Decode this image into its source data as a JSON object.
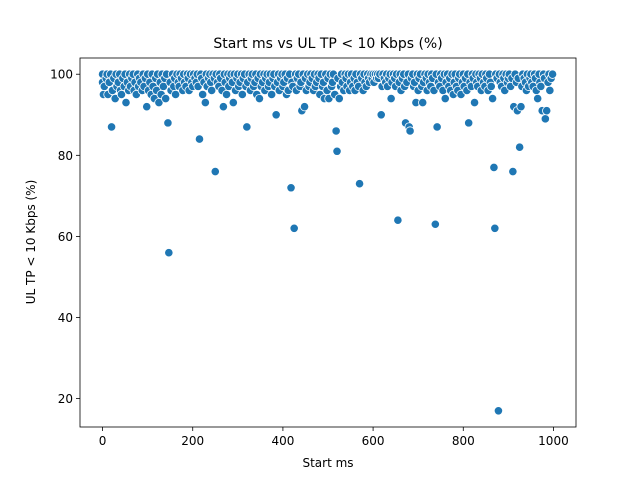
{
  "chart_data": {
    "type": "scatter",
    "title": "Start ms vs UL TP < 10 Kbps (%)",
    "xlabel": "Start ms",
    "ylabel": "UL TP < 10 Kbps (%)",
    "xlim": [
      -50,
      1050
    ],
    "ylim": [
      13,
      104
    ],
    "xticks": [
      0,
      200,
      400,
      600,
      800,
      1000
    ],
    "yticks": [
      20,
      40,
      60,
      80,
      100
    ],
    "grid": false,
    "color": "#1f77b4",
    "points": [
      [
        0,
        100
      ],
      [
        0,
        98
      ],
      [
        2,
        95
      ],
      [
        4,
        97
      ],
      [
        8,
        99
      ],
      [
        10,
        100
      ],
      [
        12,
        95
      ],
      [
        15,
        98
      ],
      [
        18,
        100
      ],
      [
        20,
        87
      ],
      [
        22,
        96
      ],
      [
        25,
        99
      ],
      [
        28,
        94
      ],
      [
        30,
        100
      ],
      [
        32,
        97
      ],
      [
        35,
        98
      ],
      [
        38,
        100
      ],
      [
        40,
        96
      ],
      [
        42,
        95
      ],
      [
        45,
        99
      ],
      [
        48,
        97
      ],
      [
        50,
        100
      ],
      [
        52,
        93
      ],
      [
        55,
        98
      ],
      [
        58,
        96
      ],
      [
        60,
        100
      ],
      [
        62,
        97
      ],
      [
        65,
        99
      ],
      [
        68,
        100
      ],
      [
        70,
        96
      ],
      [
        72,
        98
      ],
      [
        75,
        95
      ],
      [
        78,
        100
      ],
      [
        80,
        97
      ],
      [
        82,
        99
      ],
      [
        85,
        98
      ],
      [
        88,
        96
      ],
      [
        90,
        100
      ],
      [
        92,
        97
      ],
      [
        95,
        99
      ],
      [
        98,
        92
      ],
      [
        100,
        100
      ],
      [
        102,
        96
      ],
      [
        105,
        98
      ],
      [
        108,
        95
      ],
      [
        110,
        100
      ],
      [
        112,
        97
      ],
      [
        115,
        94
      ],
      [
        118,
        99
      ],
      [
        120,
        96
      ],
      [
        122,
        100
      ],
      [
        125,
        93
      ],
      [
        128,
        98
      ],
      [
        130,
        95
      ],
      [
        132,
        100
      ],
      [
        135,
        97
      ],
      [
        138,
        99
      ],
      [
        140,
        94
      ],
      [
        142,
        100
      ],
      [
        145,
        88
      ],
      [
        147,
        56
      ],
      [
        150,
        98
      ],
      [
        152,
        96
      ],
      [
        155,
        100
      ],
      [
        158,
        97
      ],
      [
        160,
        99
      ],
      [
        162,
        95
      ],
      [
        165,
        100
      ],
      [
        168,
        98
      ],
      [
        170,
        97
      ],
      [
        172,
        100
      ],
      [
        175,
        99
      ],
      [
        178,
        96
      ],
      [
        180,
        100
      ],
      [
        182,
        98
      ],
      [
        185,
        97
      ],
      [
        188,
        100
      ],
      [
        190,
        99
      ],
      [
        192,
        96
      ],
      [
        195,
        100
      ],
      [
        198,
        98
      ],
      [
        200,
        97
      ],
      [
        202,
        100
      ],
      [
        205,
        99
      ],
      [
        208,
        98
      ],
      [
        210,
        100
      ],
      [
        212,
        97
      ],
      [
        215,
        84
      ],
      [
        218,
        100
      ],
      [
        220,
        99
      ],
      [
        222,
        95
      ],
      [
        225,
        98
      ],
      [
        228,
        93
      ],
      [
        230,
        100
      ],
      [
        232,
        97
      ],
      [
        235,
        99
      ],
      [
        238,
        100
      ],
      [
        240,
        98
      ],
      [
        242,
        96
      ],
      [
        245,
        100
      ],
      [
        248,
        99
      ],
      [
        250,
        76
      ],
      [
        252,
        100
      ],
      [
        255,
        98
      ],
      [
        258,
        97
      ],
      [
        260,
        100
      ],
      [
        262,
        99
      ],
      [
        265,
        96
      ],
      [
        268,
        92
      ],
      [
        270,
        100
      ],
      [
        272,
        98
      ],
      [
        275,
        95
      ],
      [
        278,
        100
      ],
      [
        280,
        97
      ],
      [
        282,
        99
      ],
      [
        285,
        100
      ],
      [
        288,
        98
      ],
      [
        290,
        93
      ],
      [
        292,
        100
      ],
      [
        295,
        96
      ],
      [
        298,
        99
      ],
      [
        300,
        100
      ],
      [
        302,
        97
      ],
      [
        305,
        98
      ],
      [
        308,
        100
      ],
      [
        310,
        95
      ],
      [
        312,
        99
      ],
      [
        315,
        100
      ],
      [
        318,
        97
      ],
      [
        320,
        87
      ],
      [
        322,
        98
      ],
      [
        325,
        100
      ],
      [
        328,
        96
      ],
      [
        330,
        99
      ],
      [
        332,
        100
      ],
      [
        335,
        97
      ],
      [
        338,
        98
      ],
      [
        340,
        100
      ],
      [
        342,
        95
      ],
      [
        345,
        99
      ],
      [
        348,
        94
      ],
      [
        350,
        100
      ],
      [
        352,
        97
      ],
      [
        355,
        98
      ],
      [
        358,
        100
      ],
      [
        360,
        96
      ],
      [
        362,
        99
      ],
      [
        365,
        100
      ],
      [
        368,
        97
      ],
      [
        370,
        98
      ],
      [
        372,
        100
      ],
      [
        375,
        95
      ],
      [
        378,
        99
      ],
      [
        380,
        100
      ],
      [
        382,
        97
      ],
      [
        385,
        90
      ],
      [
        388,
        98
      ],
      [
        390,
        100
      ],
      [
        392,
        96
      ],
      [
        395,
        99
      ],
      [
        398,
        100
      ],
      [
        400,
        97
      ],
      [
        402,
        98
      ],
      [
        405,
        100
      ],
      [
        408,
        95
      ],
      [
        410,
        99
      ],
      [
        412,
        96
      ],
      [
        415,
        100
      ],
      [
        418,
        72
      ],
      [
        420,
        98
      ],
      [
        422,
        97
      ],
      [
        425,
        62
      ],
      [
        428,
        100
      ],
      [
        430,
        96
      ],
      [
        432,
        99
      ],
      [
        435,
        100
      ],
      [
        438,
        97
      ],
      [
        440,
        98
      ],
      [
        442,
        91
      ],
      [
        445,
        100
      ],
      [
        448,
        92
      ],
      [
        450,
        99
      ],
      [
        452,
        96
      ],
      [
        455,
        100
      ],
      [
        458,
        97
      ],
      [
        460,
        98
      ],
      [
        462,
        100
      ],
      [
        465,
        99
      ],
      [
        468,
        96
      ],
      [
        470,
        100
      ],
      [
        472,
        97
      ],
      [
        475,
        98
      ],
      [
        478,
        100
      ],
      [
        480,
        99
      ],
      [
        482,
        95
      ],
      [
        485,
        100
      ],
      [
        488,
        97
      ],
      [
        490,
        98
      ],
      [
        492,
        94
      ],
      [
        495,
        100
      ],
      [
        498,
        96
      ],
      [
        500,
        99
      ],
      [
        502,
        94
      ],
      [
        505,
        100
      ],
      [
        508,
        97
      ],
      [
        510,
        98
      ],
      [
        512,
        100
      ],
      [
        515,
        95
      ],
      [
        518,
        86
      ],
      [
        520,
        81
      ],
      [
        522,
        99
      ],
      [
        525,
        94
      ],
      [
        528,
        97
      ],
      [
        530,
        100
      ],
      [
        532,
        98
      ],
      [
        535,
        96
      ],
      [
        538,
        100
      ],
      [
        540,
        99
      ],
      [
        542,
        97
      ],
      [
        545,
        100
      ],
      [
        548,
        96
      ],
      [
        550,
        98
      ],
      [
        552,
        100
      ],
      [
        555,
        97
      ],
      [
        558,
        99
      ],
      [
        560,
        96
      ],
      [
        562,
        100
      ],
      [
        565,
        98
      ],
      [
        568,
        97
      ],
      [
        570,
        73
      ],
      [
        572,
        100
      ],
      [
        575,
        99
      ],
      [
        578,
        96
      ],
      [
        580,
        100
      ],
      [
        582,
        98
      ],
      [
        585,
        97
      ],
      [
        588,
        100
      ],
      [
        590,
        99
      ],
      [
        592,
        98
      ],
      [
        595,
        100
      ],
      [
        598,
        99
      ],
      [
        600,
        100
      ],
      [
        602,
        98
      ],
      [
        605,
        100
      ],
      [
        608,
        99
      ],
      [
        610,
        100
      ],
      [
        612,
        99
      ],
      [
        615,
        100
      ],
      [
        618,
        90
      ],
      [
        620,
        97
      ],
      [
        622,
        100
      ],
      [
        625,
        99
      ],
      [
        628,
        98
      ],
      [
        630,
        100
      ],
      [
        632,
        97
      ],
      [
        635,
        99
      ],
      [
        638,
        100
      ],
      [
        640,
        94
      ],
      [
        642,
        98
      ],
      [
        645,
        100
      ],
      [
        648,
        99
      ],
      [
        650,
        97
      ],
      [
        652,
        100
      ],
      [
        655,
        64
      ],
      [
        658,
        98
      ],
      [
        660,
        100
      ],
      [
        662,
        96
      ],
      [
        665,
        99
      ],
      [
        668,
        100
      ],
      [
        670,
        97
      ],
      [
        672,
        88
      ],
      [
        675,
        98
      ],
      [
        678,
        100
      ],
      [
        680,
        87
      ],
      [
        682,
        86
      ],
      [
        685,
        99
      ],
      [
        688,
        100
      ],
      [
        690,
        97
      ],
      [
        692,
        98
      ],
      [
        695,
        93
      ],
      [
        698,
        100
      ],
      [
        700,
        96
      ],
      [
        702,
        99
      ],
      [
        705,
        100
      ],
      [
        708,
        97
      ],
      [
        710,
        93
      ],
      [
        712,
        98
      ],
      [
        715,
        100
      ],
      [
        718,
        99
      ],
      [
        720,
        96
      ],
      [
        722,
        100
      ],
      [
        725,
        98
      ],
      [
        728,
        97
      ],
      [
        730,
        100
      ],
      [
        732,
        99
      ],
      [
        735,
        96
      ],
      [
        738,
        63
      ],
      [
        740,
        100
      ],
      [
        742,
        87
      ],
      [
        745,
        98
      ],
      [
        748,
        97
      ],
      [
        750,
        100
      ],
      [
        752,
        99
      ],
      [
        755,
        96
      ],
      [
        758,
        100
      ],
      [
        760,
        94
      ],
      [
        762,
        98
      ],
      [
        765,
        100
      ],
      [
        768,
        97
      ],
      [
        770,
        99
      ],
      [
        772,
        96
      ],
      [
        775,
        100
      ],
      [
        778,
        95
      ],
      [
        780,
        98
      ],
      [
        782,
        100
      ],
      [
        785,
        97
      ],
      [
        788,
        96
      ],
      [
        790,
        99
      ],
      [
        792,
        100
      ],
      [
        795,
        95
      ],
      [
        798,
        98
      ],
      [
        800,
        100
      ],
      [
        802,
        97
      ],
      [
        805,
        99
      ],
      [
        808,
        96
      ],
      [
        810,
        100
      ],
      [
        812,
        88
      ],
      [
        815,
        98
      ],
      [
        818,
        97
      ],
      [
        820,
        100
      ],
      [
        822,
        99
      ],
      [
        825,
        93
      ],
      [
        828,
        100
      ],
      [
        830,
        98
      ],
      [
        832,
        97
      ],
      [
        835,
        100
      ],
      [
        838,
        99
      ],
      [
        840,
        96
      ],
      [
        842,
        100
      ],
      [
        845,
        98
      ],
      [
        848,
        97
      ],
      [
        850,
        100
      ],
      [
        852,
        99
      ],
      [
        855,
        96
      ],
      [
        858,
        100
      ],
      [
        860,
        98
      ],
      [
        862,
        97
      ],
      [
        865,
        94
      ],
      [
        868,
        77
      ],
      [
        870,
        62
      ],
      [
        872,
        100
      ],
      [
        875,
        99
      ],
      [
        878,
        17
      ],
      [
        880,
        100
      ],
      [
        882,
        98
      ],
      [
        885,
        97
      ],
      [
        888,
        100
      ],
      [
        890,
        99
      ],
      [
        892,
        96
      ],
      [
        895,
        100
      ],
      [
        898,
        98
      ],
      [
        900,
        99
      ],
      [
        902,
        100
      ],
      [
        905,
        97
      ],
      [
        908,
        99
      ],
      [
        910,
        76
      ],
      [
        912,
        92
      ],
      [
        915,
        100
      ],
      [
        918,
        98
      ],
      [
        920,
        91
      ],
      [
        922,
        99
      ],
      [
        925,
        82
      ],
      [
        928,
        92
      ],
      [
        930,
        97
      ],
      [
        932,
        100
      ],
      [
        935,
        99
      ],
      [
        938,
        98
      ],
      [
        940,
        96
      ],
      [
        942,
        100
      ],
      [
        945,
        97
      ],
      [
        948,
        99
      ],
      [
        950,
        100
      ],
      [
        952,
        98
      ],
      [
        955,
        97
      ],
      [
        958,
        100
      ],
      [
        960,
        99
      ],
      [
        962,
        96
      ],
      [
        965,
        94
      ],
      [
        968,
        100
      ],
      [
        970,
        98
      ],
      [
        972,
        97
      ],
      [
        975,
        91
      ],
      [
        978,
        100
      ],
      [
        980,
        99
      ],
      [
        982,
        89
      ],
      [
        985,
        91
      ],
      [
        988,
        98
      ],
      [
        990,
        100
      ],
      [
        992,
        96
      ],
      [
        995,
        99
      ],
      [
        998,
        100
      ]
    ]
  }
}
